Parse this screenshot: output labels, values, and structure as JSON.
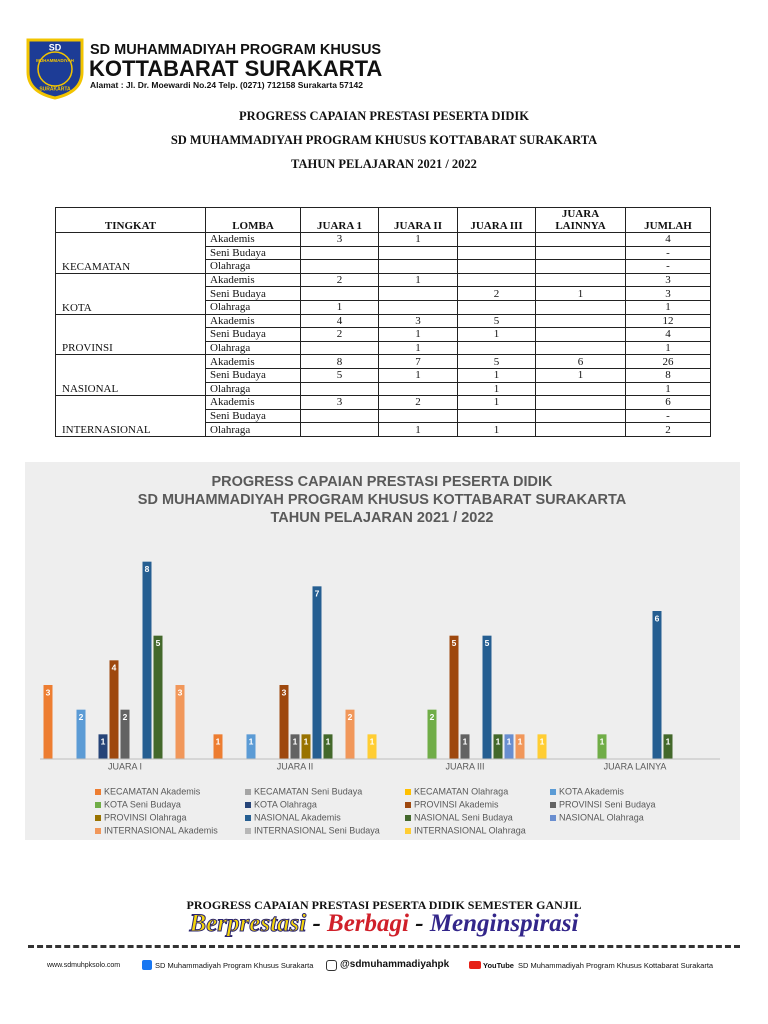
{
  "header": {
    "school": "SD MUHAMMADIYAH PROGRAM KHUSUS",
    "name": "KOTTABARAT SURAKARTA",
    "address": "Alamat : Jl. Dr. Moewardi No.24 Telp. (0271) 712158 Surakarta 57142",
    "logo": {
      "top": "SD",
      "ring": "MUHAMMADIYAH",
      "bottom": "SURAKARTA"
    }
  },
  "title": [
    "PROGRESS CAPAIAN PRESTASI PESERTA DIDIK",
    "SD MUHAMMADIYAH PROGRAM KHUSUS KOTTABARAT SURAKARTA",
    "TAHUN PELAJARAN 2021 / 2022"
  ],
  "table": {
    "columns": [
      "TINGKAT",
      "LOMBA",
      "JUARA 1",
      "JUARA II",
      "JUARA III",
      "JUARA LAINNYA",
      "JUMLAH"
    ],
    "groups": [
      {
        "tingkat": "KECAMATAN",
        "rows": [
          [
            "Akademis",
            3,
            1,
            null,
            null,
            4
          ],
          [
            "Seni Budaya",
            null,
            null,
            null,
            null,
            "-"
          ],
          [
            "Olahraga",
            null,
            null,
            null,
            null,
            "-"
          ]
        ]
      },
      {
        "tingkat": "KOTA",
        "rows": [
          [
            "Akademis",
            2,
            1,
            null,
            null,
            3
          ],
          [
            "Seni Budaya",
            null,
            null,
            2,
            1,
            3
          ],
          [
            "Olahraga",
            1,
            null,
            null,
            null,
            1
          ]
        ]
      },
      {
        "tingkat": "PROVINSI",
        "rows": [
          [
            "Akademis",
            4,
            3,
            5,
            null,
            12
          ],
          [
            "Seni Budaya",
            2,
            1,
            1,
            null,
            4
          ],
          [
            "Olahraga",
            null,
            1,
            null,
            null,
            1
          ]
        ]
      },
      {
        "tingkat": "NASIONAL",
        "rows": [
          [
            "Akademis",
            8,
            7,
            5,
            6,
            26
          ],
          [
            "Seni Budaya",
            5,
            1,
            1,
            1,
            8
          ],
          [
            "Olahraga",
            null,
            null,
            1,
            null,
            1
          ]
        ]
      },
      {
        "tingkat": "INTERNASIONAL",
        "rows": [
          [
            "Akademis",
            3,
            2,
            1,
            null,
            6
          ],
          [
            "Seni Budaya",
            null,
            null,
            null,
            null,
            "-"
          ],
          [
            "Olahraga",
            null,
            1,
            1,
            null,
            2
          ]
        ]
      }
    ]
  },
  "chart_data": {
    "type": "bar",
    "title": [
      "PROGRESS CAPAIAN PRESTASI PESERTA DIDIK",
      "SD MUHAMMADIYAH PROGRAM KHUSUS KOTTABARAT SURAKARTA",
      "TAHUN PELAJARAN 2021 / 2022"
    ],
    "categories": [
      "JUARA I",
      "JUARA II",
      "JUARA III",
      "JUARA LAINYA"
    ],
    "ylim": [
      0,
      9
    ],
    "series": [
      {
        "name": "KECAMATAN Akademis",
        "color": "#ED7D31",
        "values": [
          3,
          1,
          null,
          null
        ]
      },
      {
        "name": "KECAMATAN Seni Budaya",
        "color": "#A5A5A5",
        "values": [
          null,
          null,
          null,
          null
        ]
      },
      {
        "name": "KECAMATAN Olahraga",
        "color": "#FFC000",
        "values": [
          null,
          null,
          null,
          null
        ]
      },
      {
        "name": "KOTA Akademis",
        "color": "#5B9BD5",
        "values": [
          2,
          1,
          null,
          null
        ]
      },
      {
        "name": "KOTA Seni Budaya",
        "color": "#70AD47",
        "values": [
          null,
          null,
          2,
          1
        ]
      },
      {
        "name": "KOTA Olahraga",
        "color": "#264478",
        "values": [
          1,
          null,
          null,
          null
        ]
      },
      {
        "name": "PROVINSI Akademis",
        "color": "#9E480E",
        "values": [
          4,
          3,
          5,
          null
        ]
      },
      {
        "name": "PROVINSI Seni Budaya",
        "color": "#636363",
        "values": [
          2,
          1,
          1,
          null
        ]
      },
      {
        "name": "PROVINSI Olahraga",
        "color": "#997300",
        "values": [
          null,
          1,
          null,
          null
        ]
      },
      {
        "name": "NASIONAL Akademis",
        "color": "#255E91",
        "values": [
          8,
          7,
          5,
          6
        ]
      },
      {
        "name": "NASIONAL Seni Budaya",
        "color": "#43682B",
        "values": [
          5,
          1,
          1,
          1
        ]
      },
      {
        "name": "NASIONAL Olahraga",
        "color": "#698ED0",
        "values": [
          null,
          null,
          1,
          null
        ]
      },
      {
        "name": "INTERNASIONAL Akademis",
        "color": "#F1975A",
        "values": [
          3,
          2,
          1,
          null
        ]
      },
      {
        "name": "INTERNASIONAL Seni Budaya",
        "color": "#B7B7B7",
        "values": [
          null,
          null,
          null,
          null
        ]
      },
      {
        "name": "INTERNASIONAL Olahraga",
        "color": "#FFCD33",
        "values": [
          null,
          1,
          1,
          null
        ]
      }
    ]
  },
  "footer": {
    "subtitle": "PROGRESS CAPAIAN PRESTASI PESERTA DIDIK SEMESTER GANJIL",
    "slogan": [
      "Berprestasi",
      "-",
      "Berbagi",
      "-",
      "Menginspirasi"
    ],
    "links": [
      "www.sdmuhpksolo.com",
      "SD Muhammadiyah Program Khusus Surakarta",
      "@sdmuhammadiyahpk",
      "YouTube",
      "SD Muhammadiyah Program Khusus Kottabarat Surakarta"
    ]
  }
}
